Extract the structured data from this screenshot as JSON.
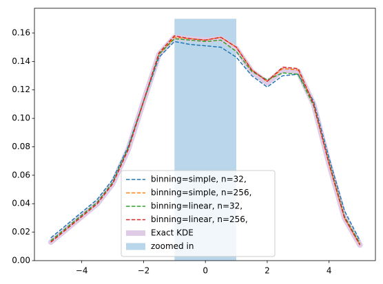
{
  "chart_data": {
    "type": "line",
    "x": [
      -5,
      -4.5,
      -4,
      -3.5,
      -3,
      -2.5,
      -2,
      -1.5,
      -1,
      -0.5,
      0,
      0.5,
      1,
      1.5,
      2,
      2.5,
      3,
      3.5,
      4,
      4.5,
      5
    ],
    "span": {
      "name": "zoomed in",
      "color": "#bad6ea",
      "x": [
        -1,
        1
      ],
      "y": [
        0,
        0.17
      ]
    },
    "series": [
      {
        "name": "binning=simple, n=32,",
        "color": "#1f77b4",
        "style": "dashed",
        "linewidth": 1.5,
        "values": [
          0.016,
          0.025,
          0.034,
          0.043,
          0.057,
          0.08,
          0.112,
          0.143,
          0.154,
          0.152,
          0.151,
          0.15,
          0.143,
          0.13,
          0.122,
          0.13,
          0.131,
          0.112,
          0.072,
          0.035,
          0.014
        ]
      },
      {
        "name": "binning=simple, n=256,",
        "color": "#ff7f0e",
        "style": "dashed",
        "linewidth": 1.5,
        "values": [
          0.013,
          0.022,
          0.031,
          0.04,
          0.054,
          0.078,
          0.112,
          0.145,
          0.157,
          0.156,
          0.155,
          0.157,
          0.15,
          0.134,
          0.126,
          0.135,
          0.134,
          0.11,
          0.068,
          0.03,
          0.011
        ]
      },
      {
        "name": "binning=linear, n=32,",
        "color": "#2ca02c",
        "style": "dashed",
        "linewidth": 1.5,
        "values": [
          0.014,
          0.023,
          0.032,
          0.041,
          0.055,
          0.079,
          0.112,
          0.145,
          0.156,
          0.155,
          0.154,
          0.155,
          0.147,
          0.133,
          0.127,
          0.132,
          0.131,
          0.109,
          0.069,
          0.031,
          0.012
        ]
      },
      {
        "name": "binning=linear, n=256,",
        "color": "#d62728",
        "style": "dashed",
        "linewidth": 1.5,
        "values": [
          0.013,
          0.022,
          0.031,
          0.04,
          0.054,
          0.078,
          0.112,
          0.146,
          0.158,
          0.156,
          0.155,
          0.157,
          0.15,
          0.134,
          0.126,
          0.136,
          0.135,
          0.11,
          0.068,
          0.03,
          0.011
        ]
      },
      {
        "name": "Exact KDE",
        "color": "#dfcbe6",
        "style": "solid",
        "linewidth": 8,
        "values": [
          0.013,
          0.022,
          0.031,
          0.04,
          0.054,
          0.078,
          0.112,
          0.145,
          0.157,
          0.156,
          0.155,
          0.156,
          0.149,
          0.133,
          0.125,
          0.134,
          0.133,
          0.11,
          0.068,
          0.03,
          0.011
        ]
      }
    ],
    "xlim": [
      -5.53,
      5.5
    ],
    "ylim": [
      0,
      0.1774
    ],
    "xticks": [
      {
        "value": -4,
        "label": "−4"
      },
      {
        "value": -2,
        "label": "−2"
      },
      0,
      2,
      4
    ],
    "yticks": [
      {
        "value": 0,
        "label": "0.00"
      },
      {
        "value": 0.02,
        "label": "0.02"
      },
      {
        "value": 0.04,
        "label": "0.04"
      },
      {
        "value": 0.06,
        "label": "0.06"
      },
      {
        "value": 0.08,
        "label": "0.08"
      },
      {
        "value": 0.1,
        "label": "0.10"
      },
      {
        "value": 0.12,
        "label": "0.12"
      },
      {
        "value": 0.14,
        "label": "0.14"
      },
      {
        "value": 0.16,
        "label": "0.16"
      }
    ],
    "legend": "lower center"
  }
}
